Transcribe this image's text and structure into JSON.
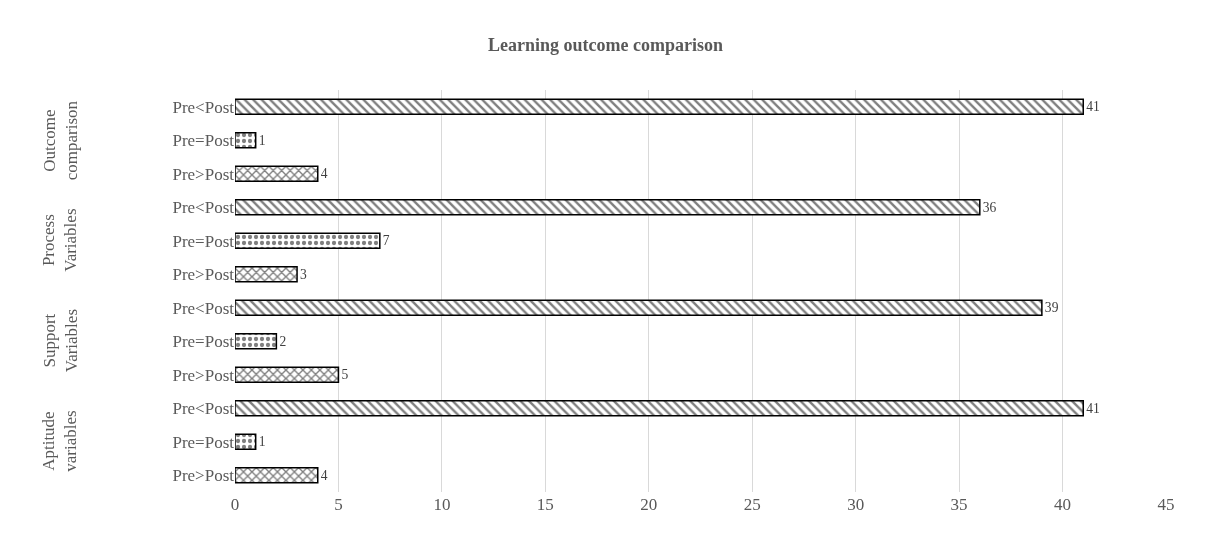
{
  "chart_data": {
    "type": "bar",
    "orientation": "horizontal",
    "title": "Learning outcome comparison",
    "categories": [
      "Pre<Post",
      "Pre=Post",
      "Pre>Post",
      "Pre<Post",
      "Pre=Post",
      "Pre>Post",
      "Pre<Post",
      "Pre=Post",
      "Pre>Post",
      "Pre<Post",
      "Pre=Post",
      "Pre>Post"
    ],
    "values": [
      41,
      1,
      4,
      36,
      7,
      3,
      39,
      2,
      5,
      41,
      1,
      4
    ],
    "colors": [
      "#000000",
      "#000000",
      "#000000",
      "#000000",
      "#000000",
      "#000000",
      "#000000",
      "#000000",
      "#000000",
      "#000000",
      "#000000",
      "#000000"
    ],
    "annotations": [
      "Outcome comparison",
      "Process Variables",
      "Support Variables",
      "Aptitude variables"
    ],
    "xlim": [
      0,
      45
    ],
    "xticks": [
      0,
      5,
      10,
      15,
      20,
      25,
      30,
      35,
      40,
      45
    ],
    "grid": "x",
    "data_labels": true
  }
}
